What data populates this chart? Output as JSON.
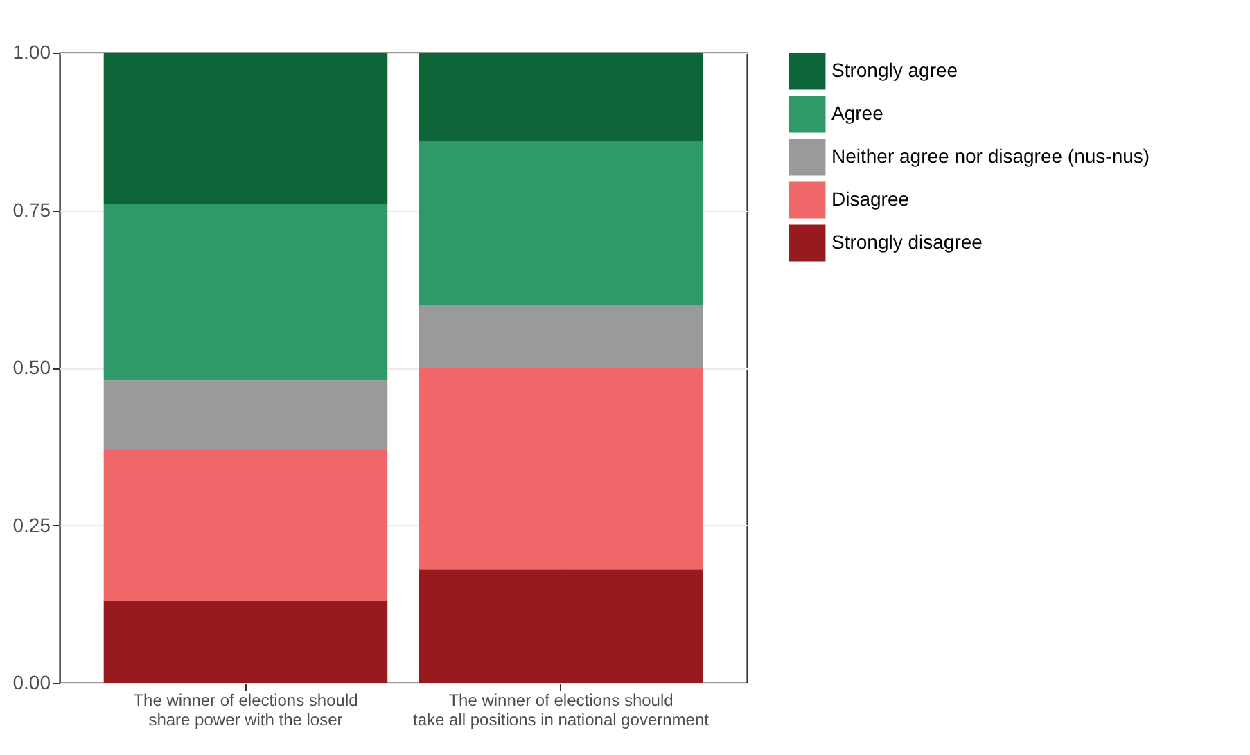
{
  "chart_data": {
    "type": "bar",
    "stacked": true,
    "categories": [
      "The winner of elections should\nshare power with the loser",
      "The winner of elections should\ntake all positions in national government"
    ],
    "series": [
      {
        "name": "Strongly disagree",
        "color": "#961a1e",
        "values": [
          0.13,
          0.18
        ]
      },
      {
        "name": "Disagree",
        "color": "#f0676a",
        "values": [
          0.24,
          0.32
        ]
      },
      {
        "name": "Neither agree nor disagree (nus-nus)",
        "color": "#9a9a9a",
        "values": [
          0.11,
          0.1
        ]
      },
      {
        "name": "Agree",
        "color": "#2f9a68",
        "values": [
          0.28,
          0.26
        ]
      },
      {
        "name": "Strongly agree",
        "color": "#0e6638",
        "values": [
          0.24,
          0.14
        ]
      }
    ],
    "ylim": [
      0,
      1
    ],
    "yticks": [
      {
        "value": 0,
        "label": "0.00"
      },
      {
        "value": 0.25,
        "label": "0.25"
      },
      {
        "value": 0.5,
        "label": "0.50"
      },
      {
        "value": 0.75,
        "label": "0.75"
      },
      {
        "value": 1,
        "label": "1.00"
      }
    ],
    "grid": true,
    "legend": "right"
  }
}
